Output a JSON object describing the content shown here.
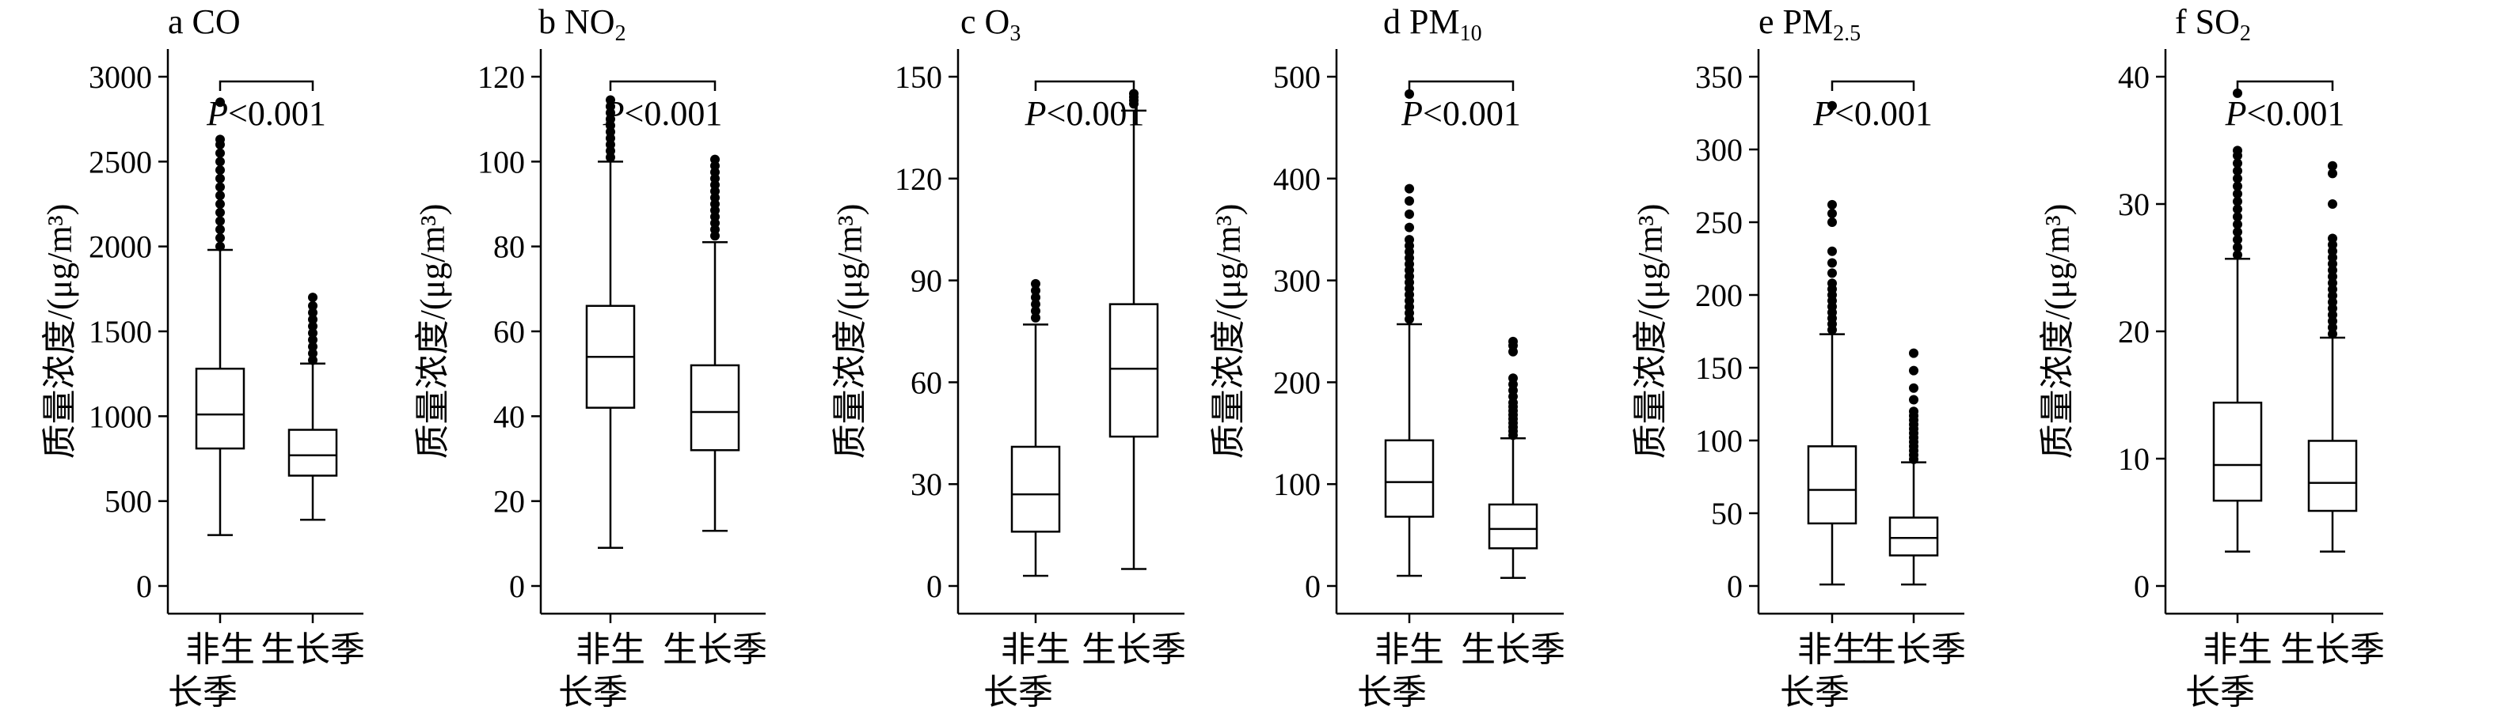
{
  "chart_data": [
    {
      "type": "boxplot",
      "title_prefix": "a CO",
      "title_sub": "",
      "ylabel": "质量浓度/(μg/m³)",
      "ylim": [
        0,
        3000
      ],
      "yticks": [
        0,
        500,
        1000,
        1500,
        2000,
        2500,
        3000
      ],
      "categories": [
        "非生长季",
        "生长季"
      ],
      "boxes": [
        {
          "whisker_low": 300,
          "q1": 810,
          "median": 1010,
          "q3": 1280,
          "whisker_high": 1980,
          "outliers": [
            2000,
            2050,
            2100,
            2150,
            2200,
            2250,
            2300,
            2350,
            2400,
            2450,
            2500,
            2550,
            2600,
            2630,
            2850
          ]
        },
        {
          "whisker_low": 390,
          "q1": 650,
          "median": 770,
          "q3": 920,
          "whisker_high": 1310,
          "outliers": [
            1330,
            1370,
            1410,
            1450,
            1490,
            1530,
            1570,
            1610,
            1650,
            1700
          ]
        }
      ],
      "annotation": {
        "italic": "P",
        "text": "<0.001"
      }
    },
    {
      "type": "boxplot",
      "title_prefix": "b NO",
      "title_sub": "2",
      "ylabel": "质量浓度/(μg/m³)",
      "ylim": [
        0,
        120
      ],
      "yticks": [
        0,
        20,
        40,
        60,
        80,
        100,
        120
      ],
      "categories": [
        "非生长季",
        "生长季"
      ],
      "boxes": [
        {
          "whisker_low": 9,
          "q1": 42,
          "median": 54,
          "q3": 66,
          "whisker_high": 100,
          "outliers": [
            101,
            102.5,
            104,
            105.5,
            107,
            108.5,
            110,
            111.5,
            113,
            114.5
          ]
        },
        {
          "whisker_low": 13,
          "q1": 32,
          "median": 41,
          "q3": 52,
          "whisker_high": 81,
          "outliers": [
            82.5,
            84,
            85.5,
            87,
            88.5,
            90,
            91.5,
            93,
            94.5,
            96,
            97.5,
            99,
            100.5
          ]
        }
      ],
      "annotation": {
        "italic": "P",
        "text": "<0.001"
      }
    },
    {
      "type": "boxplot",
      "title_prefix": "c O",
      "title_sub": "3",
      "ylabel": "质量浓度/(μg/m³)",
      "ylim": [
        0,
        150
      ],
      "yticks": [
        0,
        30,
        60,
        90,
        120,
        150
      ],
      "categories": [
        "非生长季",
        "生长季"
      ],
      "boxes": [
        {
          "whisker_low": 3,
          "q1": 16,
          "median": 27,
          "q3": 41,
          "whisker_high": 77,
          "outliers": [
            79,
            81,
            83,
            85,
            87,
            89
          ]
        },
        {
          "whisker_low": 5,
          "q1": 44,
          "median": 64,
          "q3": 83,
          "whisker_high": 140,
          "outliers": [
            142,
            143,
            144,
            145
          ]
        }
      ],
      "annotation": {
        "italic": "P",
        "text": "<0.001"
      }
    },
    {
      "type": "boxplot",
      "title_prefix": "d PM",
      "title_sub": "10",
      "ylabel": "质量浓度/(μg/m³)",
      "ylim": [
        0,
        500
      ],
      "yticks": [
        0,
        100,
        200,
        300,
        400,
        500
      ],
      "categories": [
        "非生长季",
        "生长季"
      ],
      "boxes": [
        {
          "whisker_low": 10,
          "q1": 68,
          "median": 102,
          "q3": 143,
          "whisker_high": 257,
          "outliers": [
            262,
            268,
            274,
            280,
            286,
            292,
            298,
            304,
            310,
            316,
            322,
            328,
            334,
            340,
            352,
            365,
            378,
            390,
            483
          ]
        },
        {
          "whisker_low": 8,
          "q1": 37,
          "median": 56,
          "q3": 80,
          "whisker_high": 145,
          "outliers": [
            148,
            152,
            156,
            160,
            164,
            168,
            172,
            176,
            180,
            186,
            192,
            198,
            204,
            230,
            236,
            240
          ]
        }
      ],
      "annotation": {
        "italic": "P",
        "text": "<0.001"
      }
    },
    {
      "type": "boxplot",
      "title_prefix": "e PM",
      "title_sub": "2.5",
      "ylabel": "质量浓度/(μg/m³)",
      "ylim": [
        0,
        350
      ],
      "yticks": [
        0,
        50,
        100,
        150,
        200,
        250,
        300,
        350
      ],
      "categories": [
        "非生长季",
        "生长季"
      ],
      "boxes": [
        {
          "whisker_low": 1,
          "q1": 43,
          "median": 66,
          "q3": 96,
          "whisker_high": 173,
          "outliers": [
            176,
            180,
            184,
            188,
            192,
            196,
            200,
            204,
            208,
            215,
            222,
            230,
            250,
            256,
            262,
            330
          ]
        },
        {
          "whisker_low": 1,
          "q1": 21,
          "median": 33,
          "q3": 47,
          "whisker_high": 85,
          "outliers": [
            87,
            90,
            93,
            96,
            99,
            102,
            105,
            108,
            111,
            114,
            117,
            120,
            128,
            136,
            148,
            160
          ]
        }
      ],
      "annotation": {
        "italic": "P",
        "text": "<0.001"
      }
    },
    {
      "type": "boxplot",
      "title_prefix": "f SO",
      "title_sub": "2",
      "ylabel": "质量浓度/(μg/m³)",
      "ylim": [
        0,
        40
      ],
      "yticks": [
        0,
        10,
        20,
        30,
        40
      ],
      "categories": [
        "非生长季",
        "生长季"
      ],
      "boxes": [
        {
          "whisker_low": 2.7,
          "q1": 6.7,
          "median": 9.5,
          "q3": 14.4,
          "whisker_high": 25.7,
          "outliers": [
            26,
            26.6,
            27.2,
            27.8,
            28.4,
            29,
            29.6,
            30.2,
            30.8,
            31.4,
            32,
            32.6,
            33.2,
            33.8,
            34.2,
            38.7
          ]
        },
        {
          "whisker_low": 2.7,
          "q1": 5.9,
          "median": 8.1,
          "q3": 11.4,
          "whisker_high": 19.5,
          "outliers": [
            19.8,
            20.3,
            20.8,
            21.3,
            21.8,
            22.3,
            22.8,
            23.3,
            23.8,
            24.3,
            24.8,
            25.3,
            25.8,
            26.3,
            26.8,
            27.3,
            30,
            32.4,
            33
          ]
        }
      ],
      "annotation": {
        "italic": "P",
        "text": "<0.001"
      }
    }
  ]
}
